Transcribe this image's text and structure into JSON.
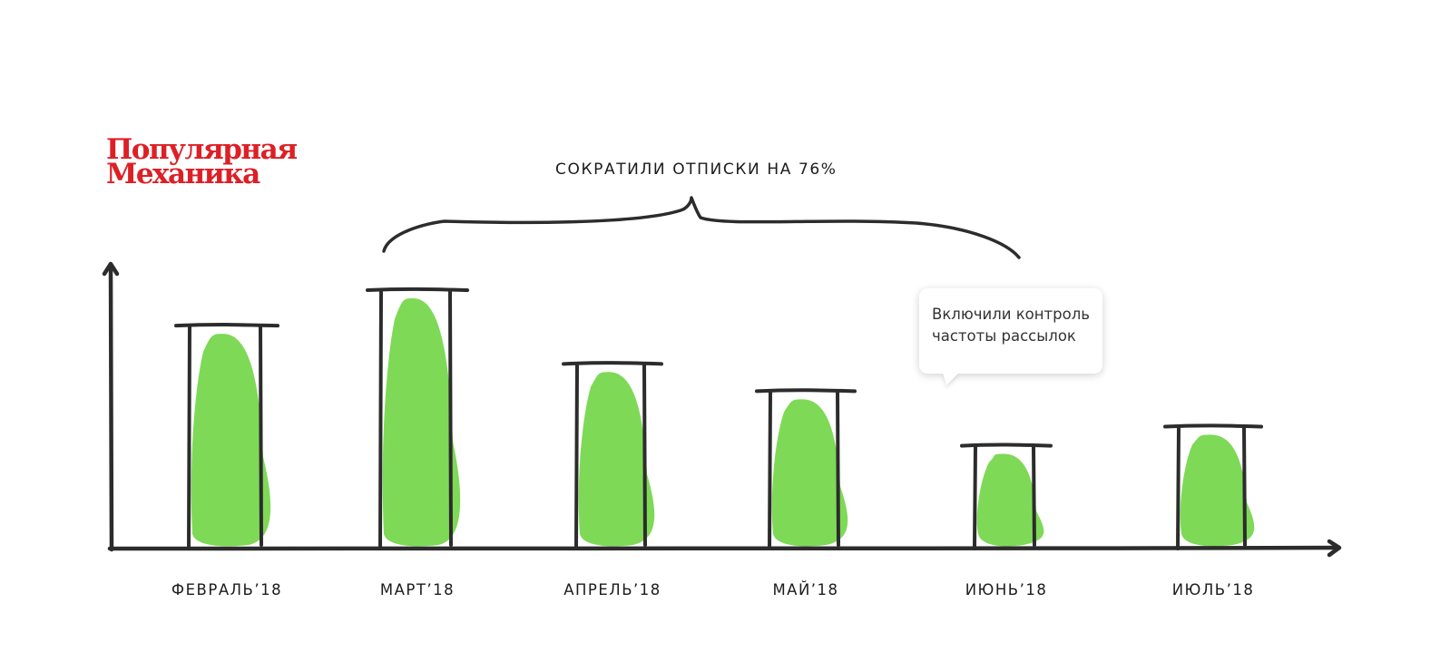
{
  "logo": {
    "line1": "Популярная",
    "line2": "Механика"
  },
  "headline": "СОКРАТИЛИ ОТПИСКИ НА 76%",
  "callout": {
    "line1": "Включили контроль",
    "line2": "частоты рассылок"
  },
  "colors": {
    "fill": "#7ed957",
    "ink": "#2c2c2c",
    "brand": "#dd1f26"
  },
  "chart_data": {
    "type": "bar",
    "categories": [
      "ФЕВРАЛЬ’18",
      "МАРТ’18",
      "АПРЕЛЬ’18",
      "МАЙ’18",
      "ИЮНЬ’18",
      "ИЮЛЬ’18"
    ],
    "values": [
      82,
      95,
      68,
      58,
      38,
      45
    ],
    "ylim": [
      0,
      100
    ],
    "xlabel": "",
    "ylabel": "",
    "title": "",
    "grid": false,
    "style": "hand-drawn"
  }
}
